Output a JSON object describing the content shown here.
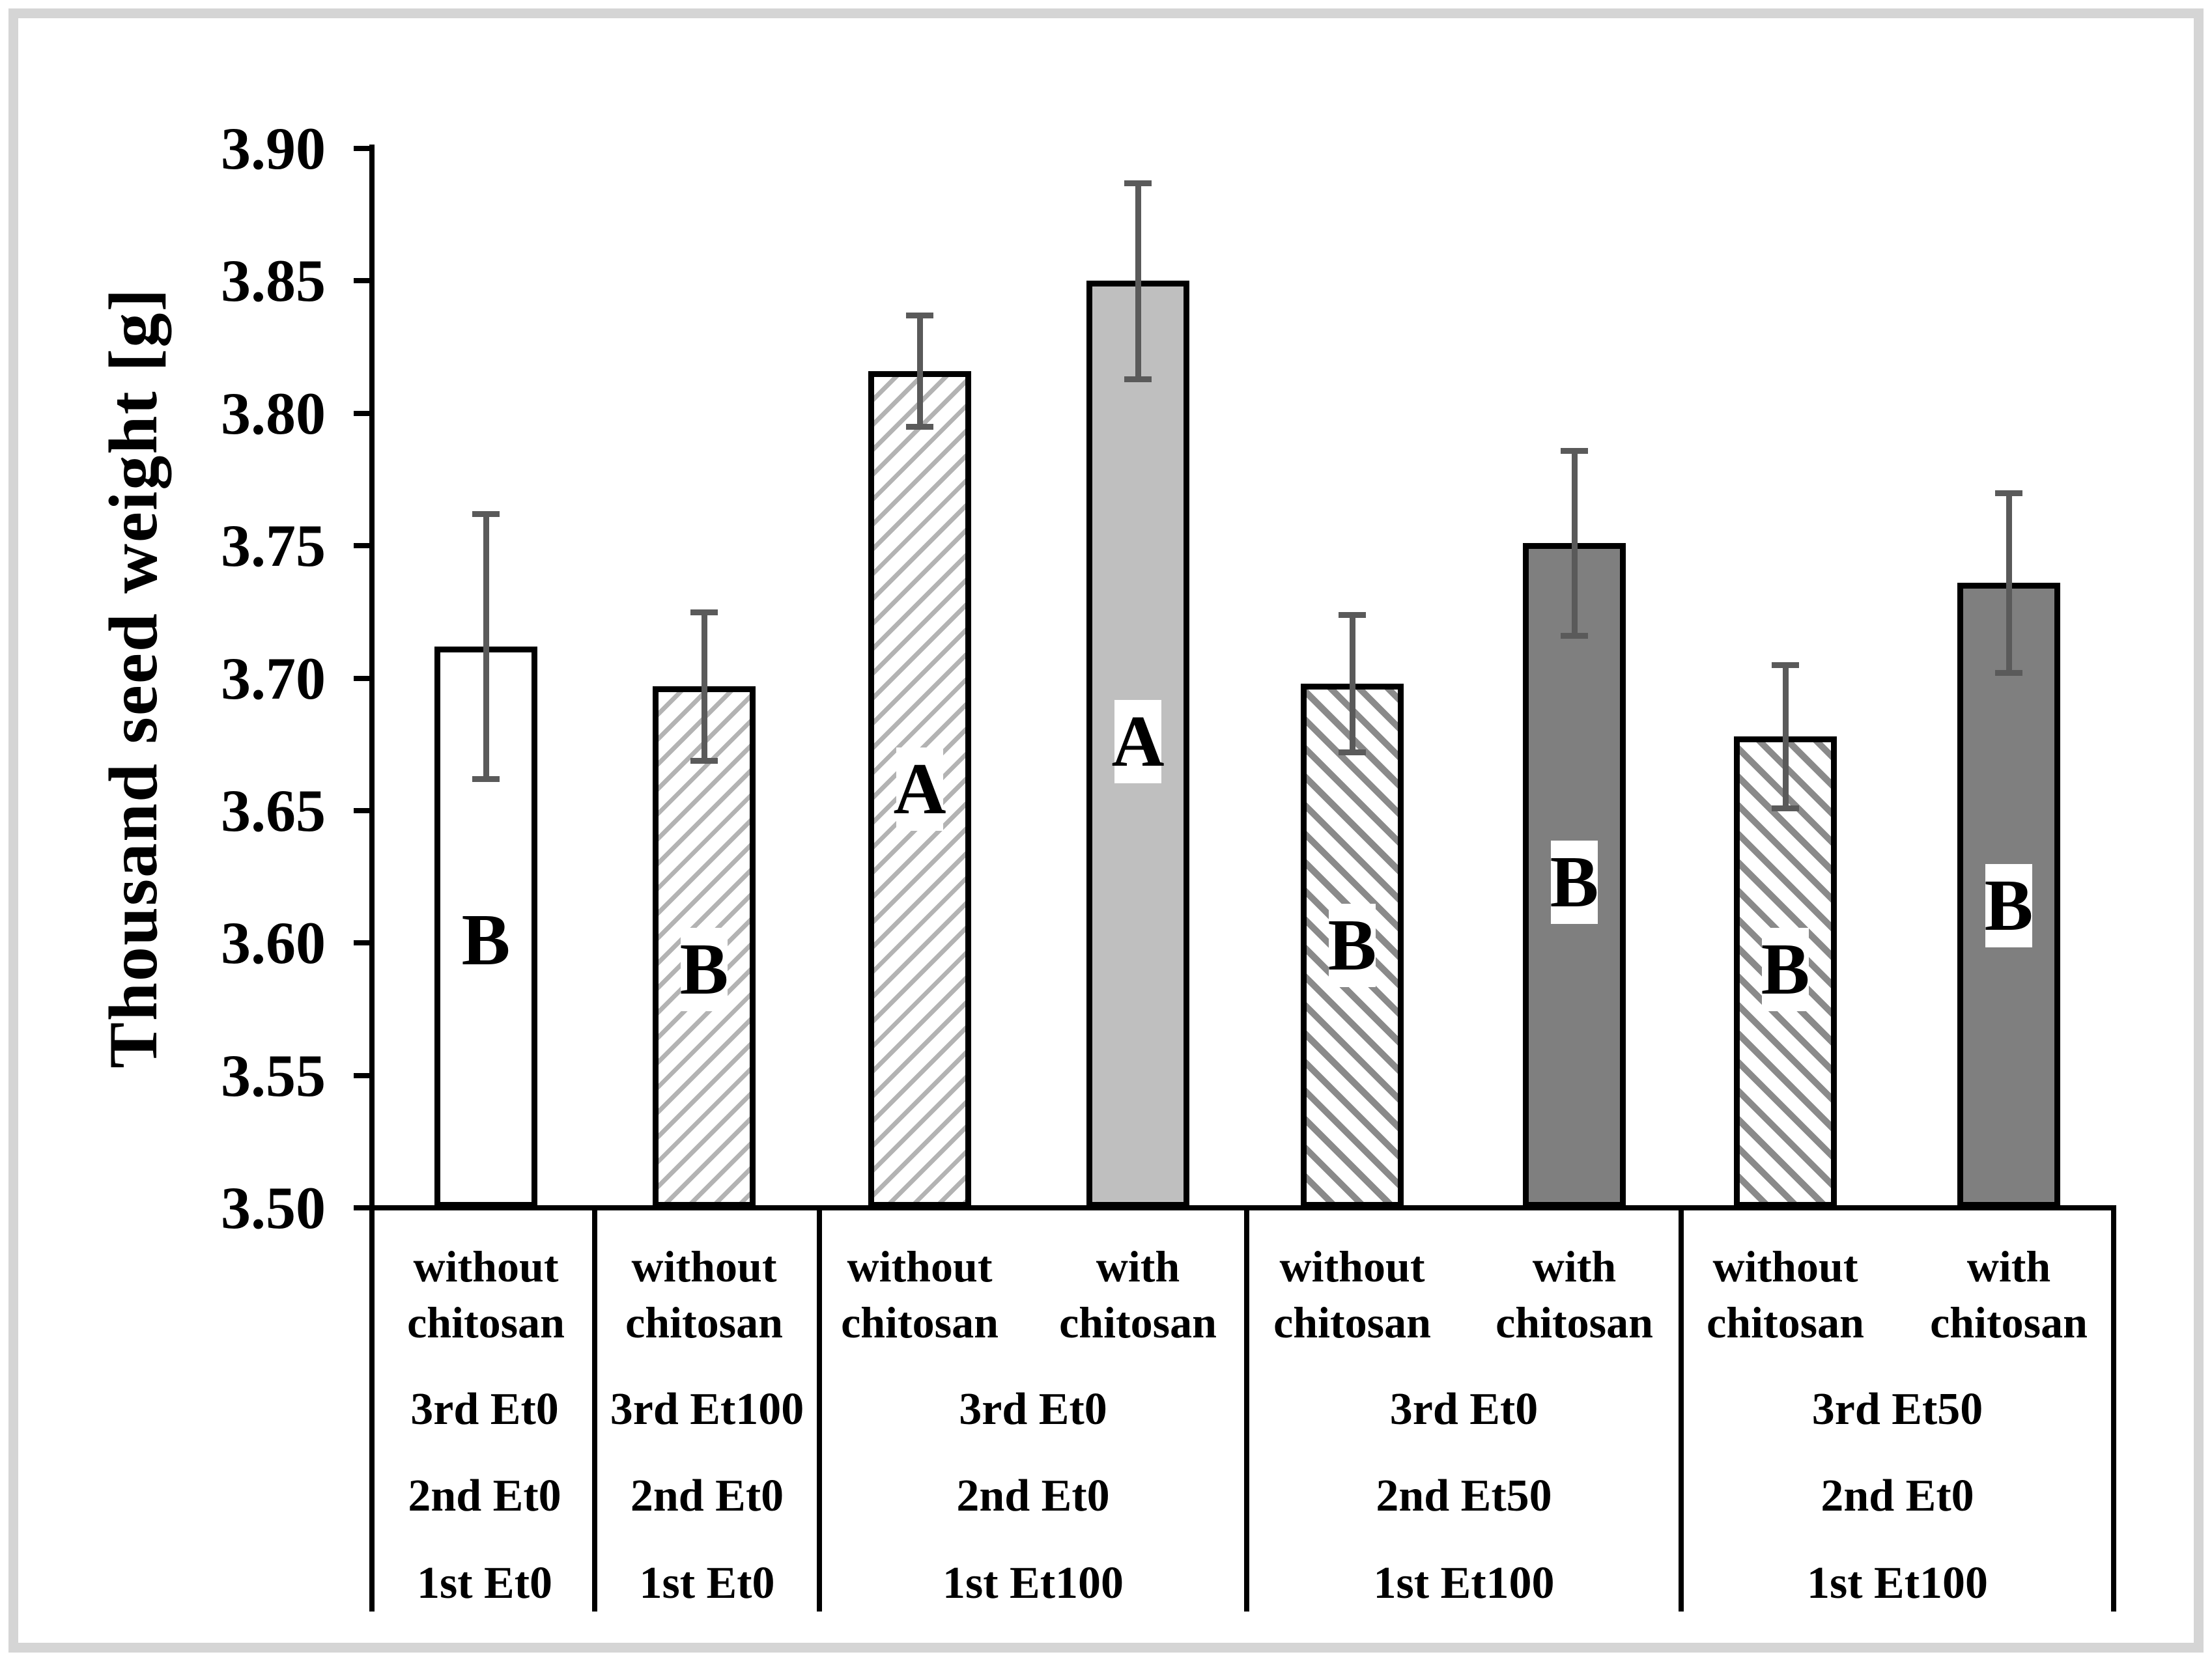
{
  "frame_color": "#d5d5d5",
  "colors": {
    "bar_border": "#000000",
    "error_bar": "#5a5a5a",
    "fill_white": "#ffffff",
    "fill_light_gray": "#bfbfbf",
    "fill_dark_gray": "#7f7f7f",
    "hatch_light": "#b3b3b3",
    "hatch_dark": "#8a8a8a"
  },
  "chart_data": {
    "type": "bar",
    "title": "",
    "xlabel": "",
    "ylabel": "Thousand seed weight [g]",
    "ylim": [
      3.5,
      3.9
    ],
    "ytick_step": 0.05,
    "yticks": [
      "3.90",
      "3.85",
      "3.80",
      "3.75",
      "3.70",
      "3.65",
      "3.60",
      "3.55",
      "3.50"
    ],
    "grid": false,
    "legend": "none",
    "error_bars": "symmetric, shown on every bar",
    "bars": [
      {
        "id": 1,
        "value": 3.712,
        "error": 0.05,
        "letter": "B",
        "letter_at": 3.601,
        "fill": "white",
        "header_line1": "without",
        "header_line2": "chitosan"
      },
      {
        "id": 2,
        "value": 3.697,
        "error": 0.028,
        "letter": "B",
        "letter_at": 3.59,
        "fill": "hatch-light",
        "header_line1": "without",
        "header_line2": "chitosan"
      },
      {
        "id": 3,
        "value": 3.816,
        "error": 0.021,
        "letter": "A",
        "letter_at": 3.658,
        "fill": "hatch-light",
        "header_line1": "without",
        "header_line2": "chitosan"
      },
      {
        "id": 4,
        "value": 3.85,
        "error": 0.037,
        "letter": "A",
        "letter_at": 3.676,
        "fill": "light-gray",
        "header_line1": "with",
        "header_line2": "chitosan"
      },
      {
        "id": 5,
        "value": 3.698,
        "error": 0.026,
        "letter": "B",
        "letter_at": 3.599,
        "fill": "hatch-dark",
        "header_line1": "without",
        "header_line2": "chitosan"
      },
      {
        "id": 6,
        "value": 3.751,
        "error": 0.035,
        "letter": "B",
        "letter_at": 3.623,
        "fill": "dark-gray",
        "header_line1": "with",
        "header_line2": "chitosan"
      },
      {
        "id": 7,
        "value": 3.678,
        "error": 0.027,
        "letter": "B",
        "letter_at": 3.59,
        "fill": "hatch-dark",
        "header_line1": "without",
        "header_line2": "chitosan"
      },
      {
        "id": 8,
        "value": 3.736,
        "error": 0.034,
        "letter": "B",
        "letter_at": 3.614,
        "fill": "dark-gray",
        "header_line1": "with",
        "header_line2": "chitosan"
      }
    ],
    "groups": [
      {
        "bars": [
          1
        ],
        "treatments": [
          "3rd Et0",
          "2nd Et0",
          "1st Et0"
        ]
      },
      {
        "bars": [
          2
        ],
        "treatments": [
          "3rd Et100",
          "2nd Et0",
          "1st Et0"
        ]
      },
      {
        "bars": [
          3,
          4
        ],
        "treatments": [
          "3rd Et0",
          "2nd Et0",
          "1st Et100"
        ]
      },
      {
        "bars": [
          5,
          6
        ],
        "treatments": [
          "3rd Et0",
          "2nd Et50",
          "1st Et100"
        ]
      },
      {
        "bars": [
          7,
          8
        ],
        "treatments": [
          "3rd Et50",
          "2nd Et0",
          "1st Et100"
        ]
      }
    ]
  }
}
